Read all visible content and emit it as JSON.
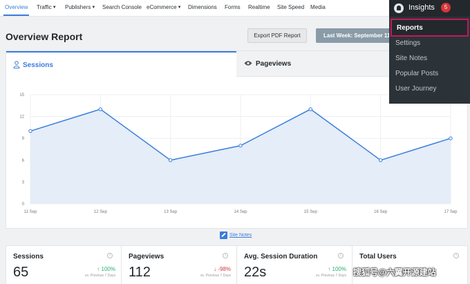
{
  "nav": {
    "items": [
      {
        "label": "Overview",
        "caret": false,
        "active": true
      },
      {
        "label": "Traffic",
        "caret": true,
        "active": false
      },
      {
        "label": "Publishers",
        "caret": true,
        "active": false
      },
      {
        "label": "Search Console",
        "caret": false,
        "active": false
      },
      {
        "label": "eCommerce",
        "caret": true,
        "active": false
      },
      {
        "label": "Dimensions",
        "caret": false,
        "active": false
      },
      {
        "label": "Forms",
        "caret": false,
        "active": false
      },
      {
        "label": "Realtime",
        "caret": false,
        "active": false
      },
      {
        "label": "Site Speed",
        "caret": false,
        "active": false
      },
      {
        "label": "Media",
        "caret": false,
        "active": false
      }
    ]
  },
  "header": {
    "title": "Overview Report",
    "export_label": "Export PDF Report",
    "date_label": "Last Week: September 11 -"
  },
  "tabs": {
    "sessions": {
      "label": "Sessions",
      "icon": "user-icon"
    },
    "pageviews": {
      "label": "Pageviews",
      "icon": "eye-icon"
    }
  },
  "chart_data": {
    "type": "area",
    "categories": [
      "11 Sep",
      "12 Sep",
      "13 Sep",
      "14 Sep",
      "15 Sep",
      "16 Sep",
      "17 Sep"
    ],
    "series": [
      {
        "values": [
          10,
          13,
          6,
          8,
          13,
          6,
          9
        ]
      }
    ],
    "ylim": [
      0,
      15
    ],
    "yticks": [
      0,
      3,
      6,
      9,
      12,
      15
    ],
    "grid": true,
    "line_color": "#3a7ddb",
    "fill_color": "#e4edf8"
  },
  "site_notes": {
    "label": "Site Notes"
  },
  "metrics": [
    {
      "title": "Sessions",
      "value": "65",
      "change": "100%",
      "direction": "up",
      "compare": "vs. Previous 7 Days"
    },
    {
      "title": "Pageviews",
      "value": "112",
      "change": "-98%",
      "direction": "down",
      "compare": "vs. Previous 7 Days"
    },
    {
      "title": "Avg. Session Duration",
      "value": "22s",
      "change": "100%",
      "direction": "up",
      "compare": "vs. Previous 7 Days"
    },
    {
      "title": "Total Users",
      "value": "",
      "change": "",
      "direction": "",
      "compare": ""
    }
  ],
  "insights_menu": {
    "label": "Insights",
    "badge": "5",
    "items": [
      "Reports",
      "Settings",
      "Site Notes",
      "Popular Posts",
      "User Journey"
    ]
  },
  "watermark": "搜狐号@六翼开源建站",
  "colors": {
    "accent": "#3a7ddb",
    "up": "#2ab06f",
    "down": "#d63638",
    "admin_bar": "#23282d",
    "highlight": "#c2185b"
  }
}
